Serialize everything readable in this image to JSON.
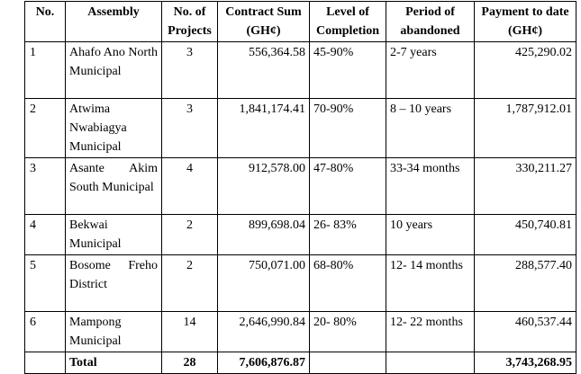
{
  "table": {
    "headers": {
      "no": "No.",
      "assembly": "Assembly",
      "projects": "No. of Projects",
      "contract_sum": "Contract Sum (GH¢)",
      "level": "Level of Completion",
      "period": "Period of abandoned",
      "payment": "Payment to date (GH¢)"
    },
    "rows": [
      {
        "no": "1",
        "assembly": "Ahafo Ano North Municipal",
        "projects": "3",
        "contract_sum": "556,364.58",
        "level": "45-90%",
        "period": "2-7 years",
        "payment": "425,290.02"
      },
      {
        "no": "2",
        "assembly": "Atwima Nwabiagya Municipal",
        "projects": "3",
        "contract_sum": "1,841,174.41",
        "level": "70-90%",
        "period": "8 – 10 years",
        "payment": "1,787,912.01"
      },
      {
        "no": "3",
        "assembly": "Asante Akim South Municipal",
        "projects": "4",
        "contract_sum": "912,578.00",
        "level": "47-80%",
        "period": "33-34 months",
        "payment": "330,211.27"
      },
      {
        "no": "4",
        "assembly": "Bekwai Municipal",
        "projects": "2",
        "contract_sum": "899,698.04",
        "level": "26- 83%",
        "period": "10 years",
        "payment": "450,740.81"
      },
      {
        "no": "5",
        "assembly": "Bosome Freho District",
        "projects": "2",
        "contract_sum": "750,071.00",
        "level": "68-80%",
        "period": "12- 14 months",
        "payment": "288,577.40"
      },
      {
        "no": "6",
        "assembly": "Mampong Municipal",
        "projects": "14",
        "contract_sum": "2,646,990.84",
        "level": "20- 80%",
        "period": "12- 22 months",
        "payment": "460,537.44"
      }
    ],
    "total": {
      "label": "Total",
      "projects": "28",
      "contract_sum": "7,606,876.87",
      "level": "",
      "period": "",
      "payment": "3,743,268.95"
    }
  }
}
